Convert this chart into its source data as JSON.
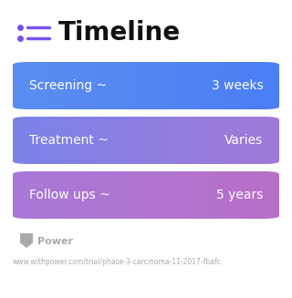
{
  "title": "Timeline",
  "title_fontsize": 20,
  "title_color": "#111111",
  "title_fontweight": "bold",
  "background_color": "#ffffff",
  "icon_dot_color": "#7755ee",
  "icon_line_color": "#7755ee",
  "rows": [
    {
      "label": "Screening ~",
      "value": "3 weeks",
      "color_left": "#5b8ef0",
      "color_right": "#4c7ef5"
    },
    {
      "label": "Treatment ~",
      "value": "Varies",
      "color_left": "#7b82e8",
      "color_right": "#a07ad8"
    },
    {
      "label": "Follow ups ~",
      "value": "5 years",
      "color_left": "#a878d8",
      "color_right": "#b870c8"
    }
  ],
  "row_label_fontsize": 10,
  "row_value_fontsize": 10,
  "footer_logo_text": "Power",
  "footer_url": "www.withpower.com/trial/phase-3-carcinoma-11-2017-fbafc",
  "footer_color": "#aaaaaa",
  "footer_fontsize": 8,
  "url_fontsize": 5.5
}
